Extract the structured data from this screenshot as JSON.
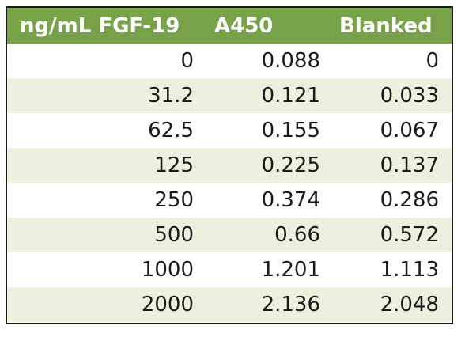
{
  "table": {
    "headers": [
      "ng/mL FGF-19",
      "A450",
      "Blanked"
    ],
    "rows": [
      [
        "0",
        "0.088",
        "0"
      ],
      [
        "31.2",
        "0.121",
        "0.033"
      ],
      [
        "62.5",
        "0.155",
        "0.067"
      ],
      [
        "125",
        "0.225",
        "0.137"
      ],
      [
        "250",
        "0.374",
        "0.286"
      ],
      [
        "500",
        "0.66",
        "0.572"
      ],
      [
        "1000",
        "1.201",
        "1.113"
      ],
      [
        "2000",
        "2.136",
        "2.048"
      ]
    ]
  },
  "colors": {
    "header_bg": "#78a24a",
    "header_text": "#ffffff",
    "band_bg": "#ebf1de",
    "border": "#1a1a1a"
  }
}
